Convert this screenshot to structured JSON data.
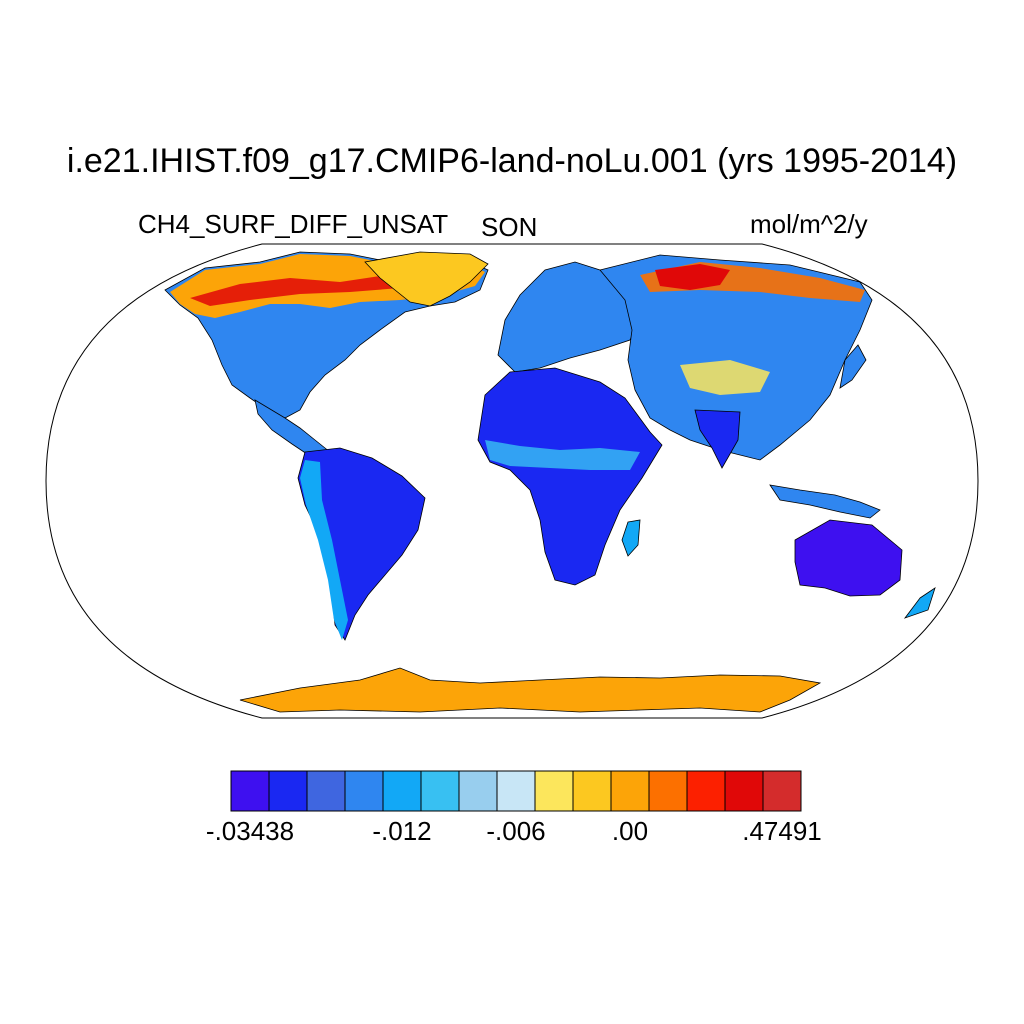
{
  "title": "i.e21.IHIST.f09_g17.CMIP6-land-noLu.001 (yrs 1995-2014)",
  "variable": "CH4_SURF_DIFF_UNSAT",
  "season": "SON",
  "units": "mol/m^2/y",
  "colorbar": {
    "colors": [
      "#3e10f0",
      "#1a28f2",
      "#3f66e0",
      "#2f86f0",
      "#12a8f6",
      "#38c0f2",
      "#98ceee",
      "#c8e6f6",
      "#fce65c",
      "#fcc820",
      "#fca408",
      "#fc7000",
      "#fc2000",
      "#e00808",
      "#d42c2c"
    ],
    "labels": [
      {
        "text": "-.03438",
        "boundary": 0
      },
      {
        "text": "-.012",
        "boundary": 4
      },
      {
        "text": "-.006",
        "boundary": 7
      },
      {
        "text": ".00",
        "boundary": 10
      },
      {
        "text": ".47491",
        "boundary": 14
      }
    ]
  }
}
